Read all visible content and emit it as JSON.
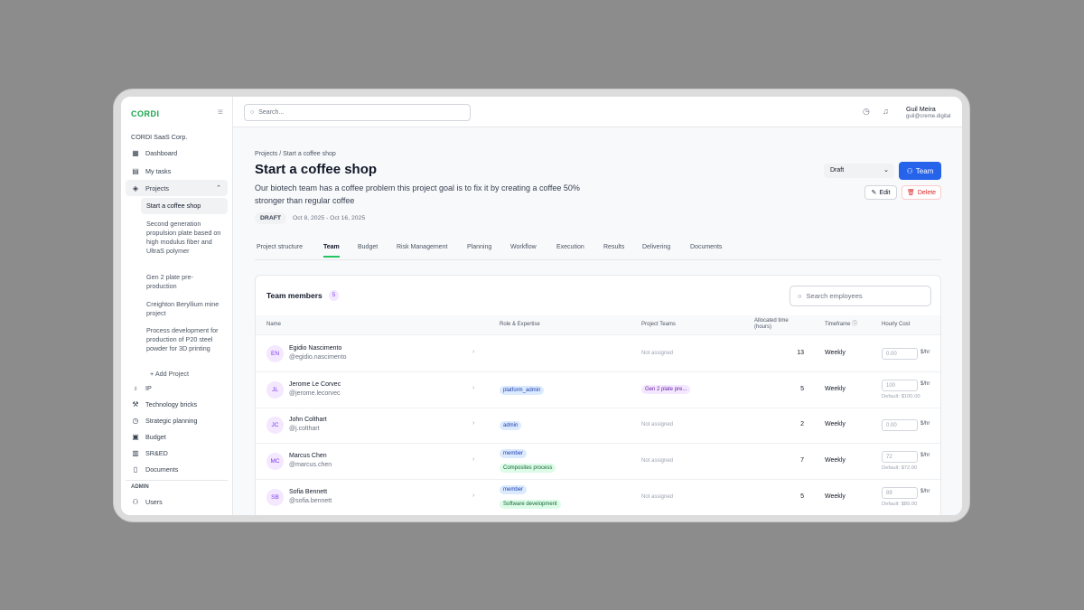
{
  "sidebar": {
    "logo": "CORDI",
    "org": "CORDI SaaS Corp.",
    "items": [
      {
        "label": "Dashboard"
      },
      {
        "label": "My tasks"
      },
      {
        "label": "Projects"
      }
    ],
    "projects": [
      "Start a coffee shop",
      "Second generation propulsion plate based on high modulus fiber and UltraS polymer",
      "Gen 2 plate pre-production",
      "Creighton Beryllium mine project",
      "Process development for production of P20 steel powder for 3D printing"
    ],
    "add_project": "Add Project",
    "items2": [
      {
        "label": "IP"
      },
      {
        "label": "Technology bricks"
      },
      {
        "label": "Strategic planning"
      },
      {
        "label": "Budget"
      },
      {
        "label": "SR&ED"
      },
      {
        "label": "Documents"
      }
    ],
    "admin_label": "ADMIN",
    "admin_items": [
      {
        "label": "Users"
      }
    ]
  },
  "header": {
    "search_placeholder": "Search...",
    "user_name": "Guil Meira",
    "user_email": "guil@creme.digital"
  },
  "page": {
    "breadcrumb": [
      "Projects",
      "Start a coffee shop"
    ],
    "title": "Start a coffee shop",
    "description": "Our biotech team has a coffee problem this project goal is to fix it by creating a coffee 50% stronger than regular coffee",
    "status_badge": "DRAFT",
    "dates": "Oct 8, 2025 - Oct 16, 2025",
    "status_select": "Draft",
    "team_button": "Team",
    "edit_button": "Edit",
    "delete_button": "Delete",
    "tabs": [
      "Project structure",
      "Team",
      "Budget",
      "Risk Management",
      "Planning",
      "Workflow",
      "Execution",
      "Results",
      "Delivering",
      "Documents"
    ],
    "active_tab": "Team"
  },
  "team": {
    "title": "Team members",
    "count": "5",
    "search_placeholder": "Search employees",
    "columns": [
      "Name",
      "Role & Expertise",
      "Project Teams",
      "Allocated time (hours)",
      "Timeframe",
      "Hourly Cost"
    ],
    "unit": "$/hr",
    "rows": [
      {
        "initials": "EN",
        "name": "Egidio Nascimento",
        "username": "@egidio.nascimento",
        "roles": [],
        "expertise": "",
        "project_team": "Not assigned",
        "hours": "13",
        "timeframe": "Weekly",
        "cost": "0.00",
        "default": ""
      },
      {
        "initials": "JL",
        "name": "Jerome Le Corvec",
        "username": "@jerome.lecorvec",
        "roles": [
          "platform_admin"
        ],
        "expertise": "",
        "project_team": "Gen 2 plate pre...",
        "hours": "5",
        "timeframe": "Weekly",
        "cost": "100",
        "default": "Default: $100.00"
      },
      {
        "initials": "JC",
        "name": "John Colthart",
        "username": "@j.colthart",
        "roles": [
          "admin"
        ],
        "expertise": "",
        "project_team": "Not assigned",
        "hours": "2",
        "timeframe": "Weekly",
        "cost": "0.00",
        "default": ""
      },
      {
        "initials": "MC",
        "name": "Marcus Chen",
        "username": "@marcus.chen",
        "roles": [
          "member"
        ],
        "expertise": "Composites process",
        "project_team": "Not assigned",
        "hours": "7",
        "timeframe": "Weekly",
        "cost": "72",
        "default": "Default: $72.00"
      },
      {
        "initials": "SB",
        "name": "Sofia Bennett",
        "username": "@sofia.bennett",
        "roles": [
          "member"
        ],
        "expertise": "Software development",
        "project_team": "Not assigned",
        "hours": "5",
        "timeframe": "Weekly",
        "cost": "89",
        "default": "Default: $89.00"
      }
    ]
  },
  "colors": {
    "brand": "#16a34a",
    "primary": "#2563eb",
    "danger": "#dc2626"
  }
}
